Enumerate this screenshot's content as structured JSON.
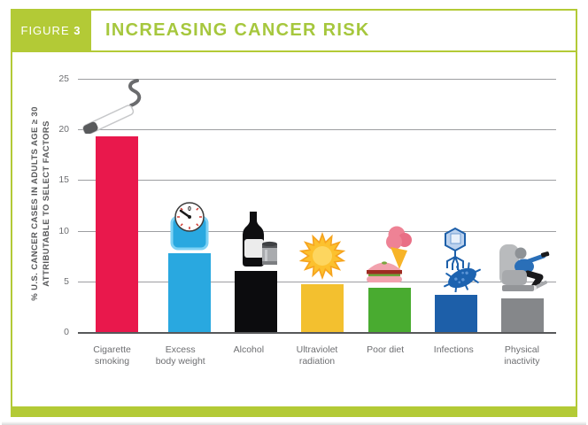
{
  "figure_tag": {
    "label": "FIGURE",
    "number": "3"
  },
  "title": "INCREASING CANCER RISK",
  "colors": {
    "accent_green": "#b3ca36",
    "title_green": "#a6c73d",
    "grid_gray": "#9d9ea1",
    "axis_gray": "#57585a",
    "text_gray": "#6d6e71"
  },
  "chart_data": {
    "type": "bar",
    "title": "INCREASING CANCER RISK",
    "ylabel_line1": "% U.S. CANCER CASES IN ADULTS AGE ≥ 30",
    "ylabel_line2": "ATTRIBUTABLE TO SELECT FACTORS",
    "ylim": [
      0,
      25
    ],
    "yticks": [
      0,
      5,
      10,
      15,
      20,
      25
    ],
    "grid": true,
    "legend": false,
    "categories": [
      "Cigarette smoking",
      "Excess body weight",
      "Alcohol",
      "Ultraviolet radiation",
      "Poor diet",
      "Infections",
      "Physical inactivity"
    ],
    "category_lines": [
      [
        "Cigarette",
        "smoking"
      ],
      [
        "Excess",
        "body weight"
      ],
      [
        "Alcohol"
      ],
      [
        "Ultraviolet",
        "radiation"
      ],
      [
        "Poor diet"
      ],
      [
        "Infections"
      ],
      [
        "Physical",
        "inactivity"
      ]
    ],
    "values": [
      19.4,
      7.8,
      6.0,
      4.7,
      4.4,
      3.7,
      3.3
    ],
    "bar_colors": [
      "#e9184c",
      "#29a8e0",
      "#0c0c0e",
      "#f3c02f",
      "#49ab30",
      "#1d5fa9",
      "#85878a"
    ],
    "icons": [
      "cigarette-icon",
      "weight-scale-icon",
      "alcohol-bottle-can-icon",
      "sun-icon",
      "burger-ice-cream-icon",
      "virus-bacteria-icon",
      "recliner-person-icon"
    ]
  }
}
